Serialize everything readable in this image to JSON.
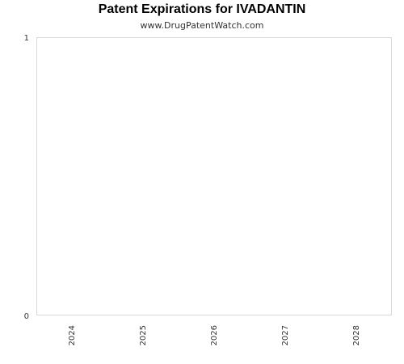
{
  "chart_data": {
    "type": "bar",
    "title": "Patent Expirations for IVADANTIN",
    "subtitle": "www.DrugPatentWatch.com",
    "categories": [
      "2024",
      "2025",
      "2026",
      "2027",
      "2028"
    ],
    "values": [
      0,
      0,
      0,
      0,
      0
    ],
    "ylim": [
      0,
      1
    ],
    "yticks": [
      "0",
      "1"
    ],
    "xlabel": "",
    "ylabel": "",
    "grid": false,
    "colors": {
      "plot_border": "#d9d9d9",
      "text": "#333333",
      "title": "#000000"
    }
  }
}
